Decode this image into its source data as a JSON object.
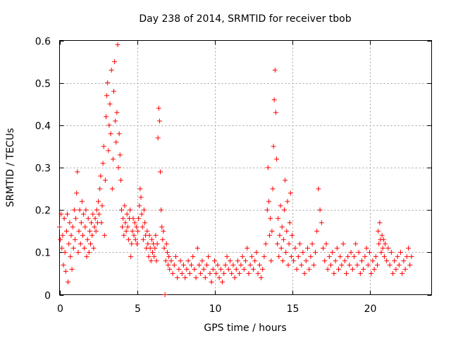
{
  "chart_data": {
    "type": "scatter",
    "title": "Day 238 of 2014, SRMTID for receiver tbob",
    "xlabel": "GPS time / hours",
    "ylabel": "SRMTID / TECUs",
    "xlim": [
      0,
      24
    ],
    "ylim": [
      0,
      0.6
    ],
    "xticks": [
      0,
      5,
      10,
      15,
      20
    ],
    "xtick_labels": [
      "0",
      "5",
      "10",
      "15",
      "20"
    ],
    "yticks": [
      0,
      0.1,
      0.2,
      0.3,
      0.4,
      0.5,
      0.6
    ],
    "ytick_labels": [
      "0",
      "0.1",
      "0.2",
      "0.3",
      "0.4",
      "0.5",
      "0.6"
    ],
    "grid": true,
    "marker": "+",
    "color": "#ff0000",
    "series": [
      {
        "name": "SRMTID",
        "points": [
          [
            0.0,
            0.16
          ],
          [
            0.05,
            0.13
          ],
          [
            0.1,
            0.19
          ],
          [
            0.15,
            0.11
          ],
          [
            0.2,
            0.14
          ],
          [
            0.25,
            0.07
          ],
          [
            0.3,
            0.18
          ],
          [
            0.35,
            0.1
          ],
          [
            0.4,
            0.055
          ],
          [
            0.45,
            0.15
          ],
          [
            0.5,
            0.19
          ],
          [
            0.55,
            0.03
          ],
          [
            0.6,
            0.12
          ],
          [
            0.65,
            0.17
          ],
          [
            0.7,
            0.09
          ],
          [
            0.75,
            0.14
          ],
          [
            0.8,
            0.06
          ],
          [
            0.85,
            0.16
          ],
          [
            0.9,
            0.11
          ],
          [
            0.95,
            0.2
          ],
          [
            1.0,
            0.13
          ],
          [
            1.05,
            0.18
          ],
          [
            1.1,
            0.24
          ],
          [
            1.15,
            0.29
          ],
          [
            1.2,
            0.1
          ],
          [
            1.25,
            0.15
          ],
          [
            1.3,
            0.2
          ],
          [
            1.35,
            0.12
          ],
          [
            1.4,
            0.17
          ],
          [
            1.45,
            0.22
          ],
          [
            1.5,
            0.14
          ],
          [
            1.55,
            0.19
          ],
          [
            1.6,
            0.11
          ],
          [
            1.65,
            0.16
          ],
          [
            1.7,
            0.2
          ],
          [
            1.75,
            0.09
          ],
          [
            1.8,
            0.13
          ],
          [
            1.85,
            0.18
          ],
          [
            1.9,
            0.1
          ],
          [
            1.95,
            0.15
          ],
          [
            2.0,
            0.12
          ],
          [
            2.05,
            0.17
          ],
          [
            2.1,
            0.14
          ],
          [
            2.15,
            0.19
          ],
          [
            2.2,
            0.11
          ],
          [
            2.25,
            0.16
          ],
          [
            2.3,
            0.18
          ],
          [
            2.35,
            0.15
          ],
          [
            2.4,
            0.2
          ],
          [
            2.45,
            0.17
          ],
          [
            2.5,
            0.22
          ],
          [
            2.55,
            0.19
          ],
          [
            2.6,
            0.25
          ],
          [
            2.65,
            0.28
          ],
          [
            2.7,
            0.17
          ],
          [
            2.75,
            0.21
          ],
          [
            2.8,
            0.31
          ],
          [
            2.85,
            0.35
          ],
          [
            2.9,
            0.14
          ],
          [
            2.95,
            0.27
          ],
          [
            3.0,
            0.42
          ],
          [
            3.05,
            0.47
          ],
          [
            3.1,
            0.5
          ],
          [
            3.15,
            0.34
          ],
          [
            3.2,
            0.4
          ],
          [
            3.25,
            0.45
          ],
          [
            3.3,
            0.38
          ],
          [
            3.35,
            0.53
          ],
          [
            3.4,
            0.25
          ],
          [
            3.45,
            0.32
          ],
          [
            3.5,
            0.48
          ],
          [
            3.55,
            0.55
          ],
          [
            3.6,
            0.41
          ],
          [
            3.65,
            0.36
          ],
          [
            3.7,
            0.43
          ],
          [
            3.75,
            0.59
          ],
          [
            3.8,
            0.3
          ],
          [
            3.85,
            0.38
          ],
          [
            3.9,
            0.33
          ],
          [
            3.95,
            0.27
          ],
          [
            4.0,
            0.2
          ],
          [
            4.05,
            0.16
          ],
          [
            4.1,
            0.18
          ],
          [
            4.15,
            0.14
          ],
          [
            4.2,
            0.21
          ],
          [
            4.25,
            0.17
          ],
          [
            4.3,
            0.15
          ],
          [
            4.35,
            0.19
          ],
          [
            4.4,
            0.16
          ],
          [
            4.45,
            0.13
          ],
          [
            4.5,
            0.18
          ],
          [
            4.55,
            0.2
          ],
          [
            4.6,
            0.09
          ],
          [
            4.65,
            0.12
          ],
          [
            4.7,
            0.15
          ],
          [
            4.75,
            0.18
          ],
          [
            4.8,
            0.14
          ],
          [
            4.85,
            0.17
          ],
          [
            4.9,
            0.13
          ],
          [
            4.95,
            0.16
          ],
          [
            5.0,
            0.12
          ],
          [
            5.05,
            0.15
          ],
          [
            5.1,
            0.18
          ],
          [
            5.15,
            0.21
          ],
          [
            5.2,
            0.25
          ],
          [
            5.25,
            0.23
          ],
          [
            5.3,
            0.19
          ],
          [
            5.35,
            0.16
          ],
          [
            5.4,
            0.13
          ],
          [
            5.45,
            0.2
          ],
          [
            5.5,
            0.17
          ],
          [
            5.55,
            0.14
          ],
          [
            5.6,
            0.11
          ],
          [
            5.65,
            0.15
          ],
          [
            5.7,
            0.12
          ],
          [
            5.75,
            0.09
          ],
          [
            5.8,
            0.14
          ],
          [
            5.85,
            0.11
          ],
          [
            5.9,
            0.08
          ],
          [
            5.95,
            0.13
          ],
          [
            6.0,
            0.1
          ],
          [
            6.05,
            0.12
          ],
          [
            6.1,
            0.09
          ],
          [
            6.15,
            0.11
          ],
          [
            6.2,
            0.14
          ],
          [
            6.25,
            0.08
          ],
          [
            6.3,
            0.12
          ],
          [
            6.35,
            0.37
          ],
          [
            6.4,
            0.44
          ],
          [
            6.45,
            0.41
          ],
          [
            6.5,
            0.29
          ],
          [
            6.55,
            0.2
          ],
          [
            6.6,
            0.16
          ],
          [
            6.65,
            0.13
          ],
          [
            6.7,
            0.15
          ],
          [
            6.75,
            0.11
          ],
          [
            6.8,
            0.0
          ],
          [
            6.85,
            0.08
          ],
          [
            6.9,
            0.12
          ],
          [
            6.95,
            0.1
          ],
          [
            7.0,
            0.07
          ],
          [
            7.05,
            0.09
          ],
          [
            7.1,
            0.06
          ],
          [
            7.2,
            0.08
          ],
          [
            7.3,
            0.05
          ],
          [
            7.4,
            0.07
          ],
          [
            7.5,
            0.09
          ],
          [
            7.6,
            0.04
          ],
          [
            7.7,
            0.06
          ],
          [
            7.8,
            0.08
          ],
          [
            7.9,
            0.05
          ],
          [
            8.0,
            0.07
          ],
          [
            8.1,
            0.04
          ],
          [
            8.2,
            0.06
          ],
          [
            8.3,
            0.08
          ],
          [
            8.4,
            0.05
          ],
          [
            8.5,
            0.07
          ],
          [
            8.6,
            0.09
          ],
          [
            8.7,
            0.06
          ],
          [
            8.8,
            0.04
          ],
          [
            8.9,
            0.11
          ],
          [
            9.0,
            0.07
          ],
          [
            9.1,
            0.05
          ],
          [
            9.2,
            0.08
          ],
          [
            9.3,
            0.06
          ],
          [
            9.4,
            0.04
          ],
          [
            9.5,
            0.07
          ],
          [
            9.6,
            0.09
          ],
          [
            9.7,
            0.05
          ],
          [
            9.8,
            0.03
          ],
          [
            9.9,
            0.06
          ],
          [
            10.0,
            0.08
          ],
          [
            10.1,
            0.05
          ],
          [
            10.2,
            0.07
          ],
          [
            10.3,
            0.04
          ],
          [
            10.4,
            0.06
          ],
          [
            10.5,
            0.03
          ],
          [
            10.6,
            0.05
          ],
          [
            10.7,
            0.07
          ],
          [
            10.8,
            0.09
          ],
          [
            10.9,
            0.06
          ],
          [
            11.0,
            0.08
          ],
          [
            11.1,
            0.05
          ],
          [
            11.2,
            0.07
          ],
          [
            11.3,
            0.04
          ],
          [
            11.4,
            0.06
          ],
          [
            11.5,
            0.08
          ],
          [
            11.6,
            0.05
          ],
          [
            11.7,
            0.07
          ],
          [
            11.8,
            0.09
          ],
          [
            11.9,
            0.06
          ],
          [
            12.0,
            0.08
          ],
          [
            12.1,
            0.11
          ],
          [
            12.2,
            0.05
          ],
          [
            12.3,
            0.07
          ],
          [
            12.4,
            0.09
          ],
          [
            12.5,
            0.06
          ],
          [
            12.6,
            0.08
          ],
          [
            12.7,
            0.1
          ],
          [
            12.8,
            0.05
          ],
          [
            12.9,
            0.07
          ],
          [
            13.0,
            0.04
          ],
          [
            13.1,
            0.06
          ],
          [
            13.2,
            0.09
          ],
          [
            13.3,
            0.12
          ],
          [
            13.4,
            0.2
          ],
          [
            13.45,
            0.3
          ],
          [
            13.5,
            0.22
          ],
          [
            13.55,
            0.14
          ],
          [
            13.6,
            0.18
          ],
          [
            13.65,
            0.08
          ],
          [
            13.7,
            0.15
          ],
          [
            13.75,
            0.25
          ],
          [
            13.8,
            0.35
          ],
          [
            13.85,
            0.46
          ],
          [
            13.9,
            0.53
          ],
          [
            13.95,
            0.43
          ],
          [
            14.0,
            0.32
          ],
          [
            14.05,
            0.12
          ],
          [
            14.1,
            0.18
          ],
          [
            14.15,
            0.09
          ],
          [
            14.2,
            0.14
          ],
          [
            14.25,
            0.21
          ],
          [
            14.3,
            0.11
          ],
          [
            14.35,
            0.16
          ],
          [
            14.4,
            0.08
          ],
          [
            14.45,
            0.13
          ],
          [
            14.5,
            0.2
          ],
          [
            14.55,
            0.27
          ],
          [
            14.6,
            0.1
          ],
          [
            14.65,
            0.15
          ],
          [
            14.7,
            0.22
          ],
          [
            14.75,
            0.07
          ],
          [
            14.8,
            0.12
          ],
          [
            14.85,
            0.17
          ],
          [
            14.9,
            0.24
          ],
          [
            14.95,
            0.09
          ],
          [
            15.0,
            0.14
          ],
          [
            15.1,
            0.08
          ],
          [
            15.2,
            0.11
          ],
          [
            15.3,
            0.06
          ],
          [
            15.4,
            0.09
          ],
          [
            15.5,
            0.12
          ],
          [
            15.6,
            0.07
          ],
          [
            15.7,
            0.1
          ],
          [
            15.8,
            0.05
          ],
          [
            15.9,
            0.08
          ],
          [
            16.0,
            0.11
          ],
          [
            16.1,
            0.06
          ],
          [
            16.2,
            0.09
          ],
          [
            16.3,
            0.12
          ],
          [
            16.4,
            0.07
          ],
          [
            16.5,
            0.1
          ],
          [
            16.6,
            0.15
          ],
          [
            16.7,
            0.25
          ],
          [
            16.8,
            0.2
          ],
          [
            16.9,
            0.17
          ],
          [
            17.0,
            0.11
          ],
          [
            17.1,
            0.08
          ],
          [
            17.2,
            0.12
          ],
          [
            17.3,
            0.06
          ],
          [
            17.4,
            0.09
          ],
          [
            17.5,
            0.07
          ],
          [
            17.6,
            0.1
          ],
          [
            17.7,
            0.05
          ],
          [
            17.8,
            0.08
          ],
          [
            17.9,
            0.11
          ],
          [
            18.0,
            0.06
          ],
          [
            18.1,
            0.09
          ],
          [
            18.2,
            0.07
          ],
          [
            18.3,
            0.12
          ],
          [
            18.4,
            0.08
          ],
          [
            18.5,
            0.05
          ],
          [
            18.6,
            0.09
          ],
          [
            18.7,
            0.07
          ],
          [
            18.8,
            0.1
          ],
          [
            18.9,
            0.06
          ],
          [
            19.0,
            0.09
          ],
          [
            19.1,
            0.12
          ],
          [
            19.2,
            0.07
          ],
          [
            19.3,
            0.1
          ],
          [
            19.4,
            0.05
          ],
          [
            19.5,
            0.08
          ],
          [
            19.6,
            0.06
          ],
          [
            19.7,
            0.09
          ],
          [
            19.8,
            0.11
          ],
          [
            19.9,
            0.07
          ],
          [
            20.0,
            0.1
          ],
          [
            20.1,
            0.05
          ],
          [
            20.2,
            0.08
          ],
          [
            20.3,
            0.06
          ],
          [
            20.4,
            0.09
          ],
          [
            20.5,
            0.07
          ],
          [
            20.55,
            0.15
          ],
          [
            20.6,
            0.12
          ],
          [
            20.65,
            0.17
          ],
          [
            20.7,
            0.13
          ],
          [
            20.75,
            0.1
          ],
          [
            20.8,
            0.14
          ],
          [
            20.85,
            0.11
          ],
          [
            20.9,
            0.13
          ],
          [
            20.95,
            0.09
          ],
          [
            21.0,
            0.12
          ],
          [
            21.1,
            0.08
          ],
          [
            21.2,
            0.11
          ],
          [
            21.3,
            0.07
          ],
          [
            21.4,
            0.1
          ],
          [
            21.5,
            0.05
          ],
          [
            21.6,
            0.08
          ],
          [
            21.7,
            0.06
          ],
          [
            21.8,
            0.09
          ],
          [
            21.9,
            0.07
          ],
          [
            22.0,
            0.1
          ],
          [
            22.1,
            0.05
          ],
          [
            22.2,
            0.08
          ],
          [
            22.3,
            0.06
          ],
          [
            22.4,
            0.09
          ],
          [
            22.5,
            0.11
          ],
          [
            22.6,
            0.07
          ],
          [
            22.7,
            0.09
          ]
        ]
      }
    ]
  }
}
